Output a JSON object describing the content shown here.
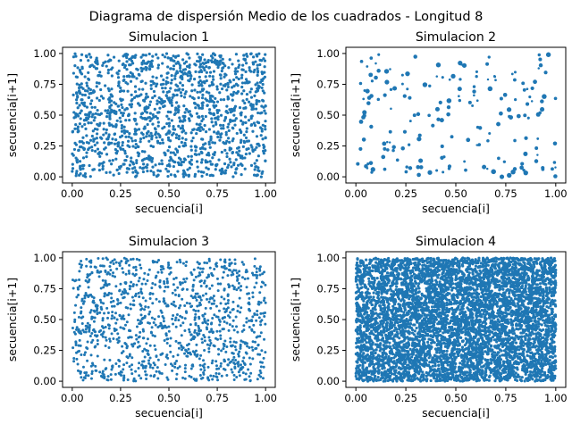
{
  "figure": {
    "suptitle": "Diagrama de dispersión Medio de los cuadrados - Longitud 8"
  },
  "chart_data": [
    {
      "type": "scatter",
      "title": "Simulacion 1",
      "xlabel": "secuencia[i]",
      "ylabel": "secuencia[i+1]",
      "xlim": [
        -0.05,
        1.05
      ],
      "ylim": [
        -0.05,
        1.05
      ],
      "xticks": [
        "0.00",
        "0.25",
        "0.50",
        "0.75",
        "1.00"
      ],
      "yticks": [
        "0.00",
        "0.25",
        "0.50",
        "0.75",
        "1.00"
      ],
      "marker_color": "#1f77b4",
      "point_count": 1500,
      "marker_radius": 1.6,
      "seed": 11
    },
    {
      "type": "scatter",
      "title": "Simulacion 2",
      "xlabel": "secuencia[i]",
      "ylabel": "secuencia[i+1]",
      "xlim": [
        -0.05,
        1.05
      ],
      "ylim": [
        -0.05,
        1.05
      ],
      "xticks": [
        "0.00",
        "0.25",
        "0.50",
        "0.75",
        "1.00"
      ],
      "yticks": [
        "0.00",
        "0.25",
        "0.50",
        "0.75",
        "1.00"
      ],
      "marker_color": "#1f77b4",
      "point_count": 190,
      "marker_radius": 2.0,
      "seed": 23
    },
    {
      "type": "scatter",
      "title": "Simulacion 3",
      "xlabel": "secuencia[i]",
      "ylabel": "secuencia[i+1]",
      "xlim": [
        -0.05,
        1.05
      ],
      "ylim": [
        -0.05,
        1.05
      ],
      "xticks": [
        "0.00",
        "0.25",
        "0.50",
        "0.75",
        "1.00"
      ],
      "yticks": [
        "0.00",
        "0.25",
        "0.50",
        "0.75",
        "1.00"
      ],
      "marker_color": "#1f77b4",
      "point_count": 1200,
      "marker_radius": 1.5,
      "seed": 37
    },
    {
      "type": "scatter",
      "title": "Simulacion 4",
      "xlabel": "secuencia[i]",
      "ylabel": "secuencia[i+1]",
      "xlim": [
        -0.05,
        1.05
      ],
      "ylim": [
        -0.05,
        1.05
      ],
      "xticks": [
        "0.00",
        "0.25",
        "0.50",
        "0.75",
        "1.00"
      ],
      "yticks": [
        "0.00",
        "0.25",
        "0.50",
        "0.75",
        "1.00"
      ],
      "marker_color": "#1f77b4",
      "point_count": 6000,
      "marker_radius": 1.6,
      "seed": 51
    }
  ]
}
